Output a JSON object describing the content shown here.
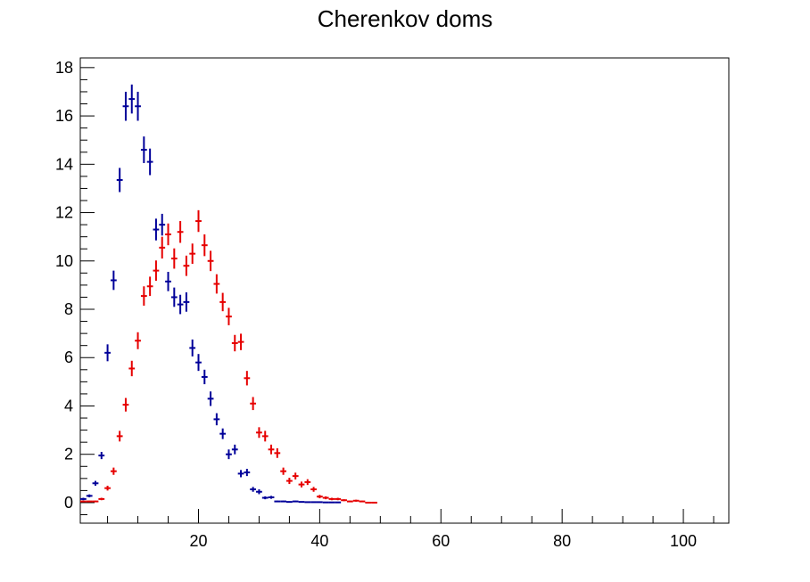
{
  "chart_data": {
    "type": "scatter",
    "title": "Cherenkov doms",
    "xlabel": "",
    "ylabel": "",
    "xlim": [
      0.5,
      107.5
    ],
    "ylim": [
      -0.85,
      18.4
    ],
    "x_ticks": [
      20,
      40,
      60,
      80,
      100
    ],
    "y_ticks": [
      0,
      2,
      4,
      6,
      8,
      10,
      12,
      14,
      16,
      18
    ],
    "grid": false,
    "legend": "none",
    "series": [
      {
        "color": "#000099",
        "points": [
          [
            1,
            0.15,
            0.05
          ],
          [
            2,
            0.28,
            0.06
          ],
          [
            3,
            0.8,
            0.1
          ],
          [
            4,
            1.95,
            0.15
          ],
          [
            5,
            6.2,
            0.35
          ],
          [
            6,
            9.2,
            0.4
          ],
          [
            7,
            13.35,
            0.5
          ],
          [
            8,
            16.4,
            0.6
          ],
          [
            9,
            16.7,
            0.6
          ],
          [
            10,
            16.4,
            0.6
          ],
          [
            11,
            14.6,
            0.55
          ],
          [
            12,
            14.1,
            0.55
          ],
          [
            13,
            11.3,
            0.45
          ],
          [
            14,
            11.5,
            0.45
          ],
          [
            15,
            9.15,
            0.4
          ],
          [
            16,
            8.5,
            0.4
          ],
          [
            17,
            8.2,
            0.4
          ],
          [
            18,
            8.3,
            0.4
          ],
          [
            19,
            6.4,
            0.35
          ],
          [
            20,
            5.8,
            0.35
          ],
          [
            21,
            5.2,
            0.3
          ],
          [
            22,
            4.3,
            0.3
          ],
          [
            23,
            3.45,
            0.25
          ],
          [
            24,
            2.85,
            0.22
          ],
          [
            25,
            2.0,
            0.2
          ],
          [
            26,
            2.2,
            0.2
          ],
          [
            27,
            1.2,
            0.15
          ],
          [
            28,
            1.25,
            0.15
          ],
          [
            29,
            0.55,
            0.1
          ],
          [
            30,
            0.45,
            0.1
          ],
          [
            31,
            0.2,
            0.06
          ],
          [
            32,
            0.22,
            0.06
          ],
          [
            33,
            0.05,
            0.03
          ],
          [
            34,
            0.05,
            0.03
          ],
          [
            35,
            0.03,
            0.02
          ],
          [
            36,
            0.05,
            0.03
          ],
          [
            37,
            0.03,
            0.02
          ],
          [
            38,
            0.02,
            0.02
          ],
          [
            39,
            0.02,
            0.02
          ],
          [
            40,
            0.02,
            0.02
          ],
          [
            41,
            0.01,
            0.01
          ],
          [
            42,
            0.01,
            0.01
          ],
          [
            43,
            0.01,
            0.01
          ]
        ]
      },
      {
        "color": "#e60000",
        "points": [
          [
            1,
            0.05,
            0.03
          ],
          [
            2,
            0.05,
            0.03
          ],
          [
            3,
            0.05,
            0.03
          ],
          [
            4,
            0.15,
            0.05
          ],
          [
            5,
            0.6,
            0.1
          ],
          [
            6,
            1.3,
            0.15
          ],
          [
            7,
            2.75,
            0.22
          ],
          [
            8,
            4.05,
            0.28
          ],
          [
            9,
            5.55,
            0.32
          ],
          [
            10,
            6.7,
            0.35
          ],
          [
            11,
            8.55,
            0.4
          ],
          [
            12,
            8.95,
            0.4
          ],
          [
            13,
            9.6,
            0.42
          ],
          [
            14,
            10.55,
            0.45
          ],
          [
            15,
            11.1,
            0.45
          ],
          [
            16,
            10.1,
            0.42
          ],
          [
            17,
            11.2,
            0.45
          ],
          [
            18,
            9.8,
            0.42
          ],
          [
            19,
            10.3,
            0.42
          ],
          [
            20,
            11.65,
            0.45
          ],
          [
            21,
            10.65,
            0.45
          ],
          [
            22,
            10.0,
            0.42
          ],
          [
            23,
            9.05,
            0.4
          ],
          [
            24,
            8.3,
            0.38
          ],
          [
            25,
            7.7,
            0.36
          ],
          [
            26,
            6.6,
            0.34
          ],
          [
            27,
            6.65,
            0.34
          ],
          [
            28,
            5.15,
            0.3
          ],
          [
            29,
            4.1,
            0.27
          ],
          [
            30,
            2.9,
            0.22
          ],
          [
            31,
            2.75,
            0.22
          ],
          [
            32,
            2.2,
            0.2
          ],
          [
            33,
            2.05,
            0.2
          ],
          [
            34,
            1.3,
            0.15
          ],
          [
            35,
            0.9,
            0.13
          ],
          [
            36,
            1.1,
            0.14
          ],
          [
            37,
            0.75,
            0.12
          ],
          [
            38,
            0.85,
            0.12
          ],
          [
            39,
            0.55,
            0.1
          ],
          [
            40,
            0.25,
            0.07
          ],
          [
            41,
            0.2,
            0.06
          ],
          [
            42,
            0.15,
            0.05
          ],
          [
            43,
            0.15,
            0.05
          ],
          [
            44,
            0.1,
            0.04
          ],
          [
            45,
            0.05,
            0.03
          ],
          [
            46,
            0.08,
            0.04
          ],
          [
            47,
            0.05,
            0.03
          ],
          [
            48,
            0.0,
            0.02
          ],
          [
            49,
            0.0,
            0.02
          ]
        ]
      }
    ]
  }
}
